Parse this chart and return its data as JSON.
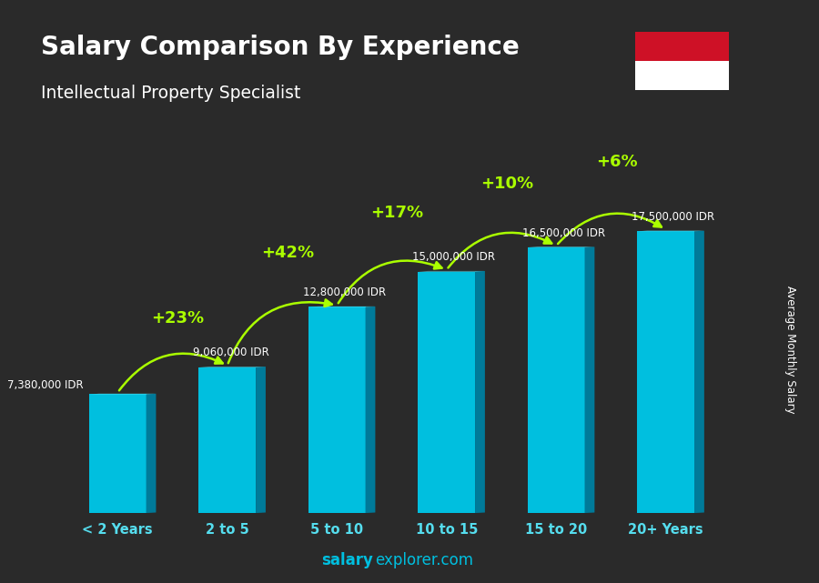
{
  "categories": [
    "< 2 Years",
    "2 to 5",
    "5 to 10",
    "10 to 15",
    "15 to 20",
    "20+ Years"
  ],
  "values": [
    7380000,
    9060000,
    12800000,
    15000000,
    16500000,
    17500000
  ],
  "salary_labels": [
    "7,380,000 IDR",
    "9,060,000 IDR",
    "12,800,000 IDR",
    "15,000,000 IDR",
    "16,500,000 IDR",
    "17,500,000 IDR"
  ],
  "pct_labels": [
    "+23%",
    "+42%",
    "+17%",
    "+10%",
    "+6%"
  ],
  "title_main": "Salary Comparison By Experience",
  "title_sub": "Intellectual Property Specialist",
  "ylabel": "Average Monthly Salary",
  "footer_bold": "salary",
  "footer_regular": "explorer.com",
  "bar_color_face": "#00BFDF",
  "bar_color_dark": "#007A99",
  "bar_color_top": "#55E0F5",
  "bg_color": "#2a2a2a",
  "text_color_white": "#FFFFFF",
  "text_color_cyan": "#55DDEE",
  "text_color_green": "#AAFF00",
  "arrow_color": "#AAFF00",
  "ylim": [
    0,
    21000000
  ],
  "flag_red": "#CE1126",
  "flag_white": "#FFFFFF"
}
